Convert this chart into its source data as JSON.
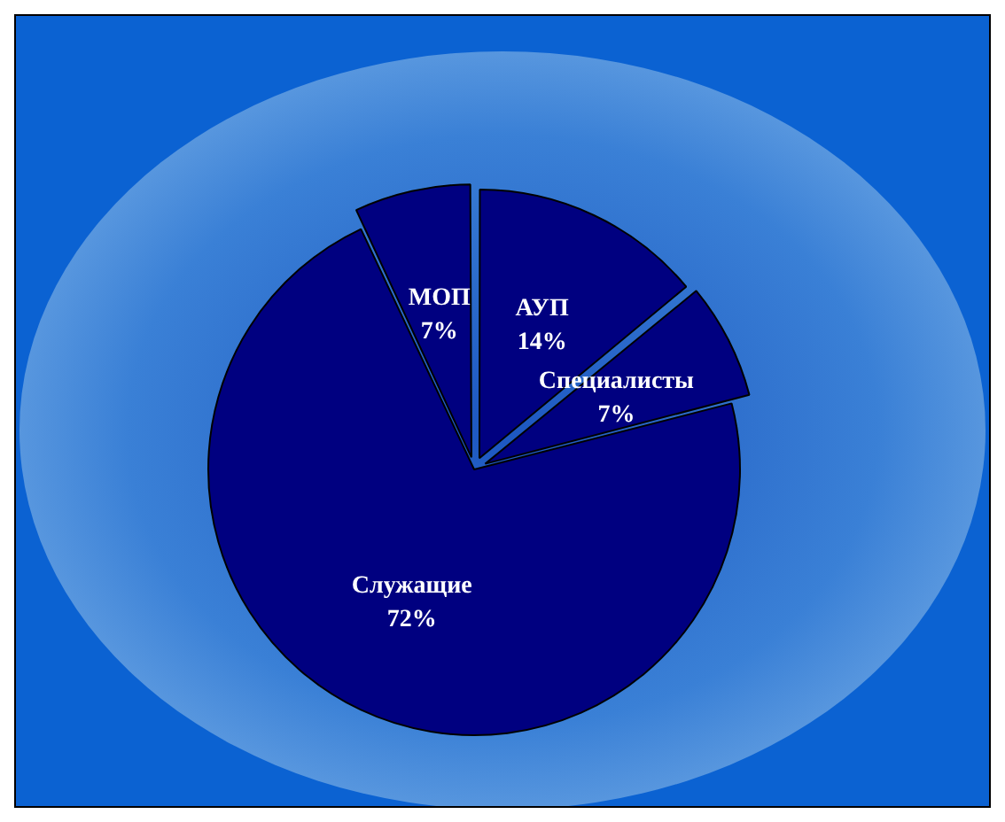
{
  "chart_data": {
    "type": "pie",
    "categories": [
      "АУП",
      "Специалисты",
      "Служащие",
      "МОП"
    ],
    "values": [
      14,
      7,
      72,
      7
    ],
    "colors": [
      "#000080",
      "#000080",
      "#000080",
      "#000080"
    ],
    "value_labels": [
      "14%",
      "7%",
      "72%",
      "7%"
    ],
    "legend": false
  }
}
